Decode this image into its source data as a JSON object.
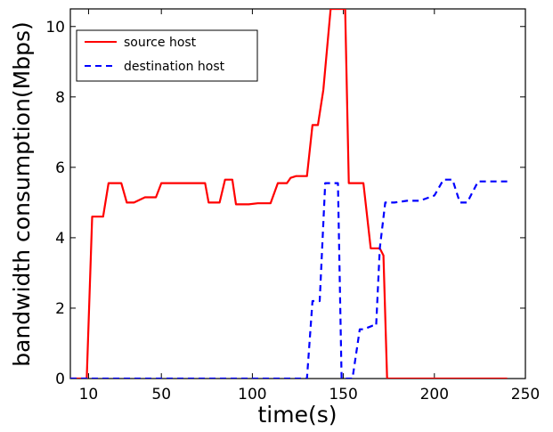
{
  "chart_data": {
    "type": "line",
    "xlabel": "time(s)",
    "ylabel": "bandwidth consumption(Mbps)",
    "xlim": [
      0,
      250
    ],
    "ylim": [
      0,
      10.5
    ],
    "x_ticks": [
      10,
      50,
      100,
      150,
      200,
      250
    ],
    "y_ticks": [
      0,
      2,
      4,
      6,
      8,
      10
    ],
    "grid": false,
    "legend_position": "top-left",
    "series": [
      {
        "name": "source host",
        "color": "#ff0000",
        "style": "solid",
        "x": [
          0,
          9,
          12,
          18,
          21,
          28,
          31,
          35,
          41,
          47,
          50,
          55,
          60,
          65,
          70,
          74,
          76,
          82,
          85,
          89,
          91,
          98,
          103,
          110,
          114,
          117,
          119,
          121,
          124,
          130,
          133,
          136,
          139,
          143,
          145,
          147,
          151,
          153,
          157,
          161,
          165,
          167,
          170,
          172,
          174,
          178,
          185,
          200,
          220,
          240
        ],
        "y": [
          0,
          0,
          4.6,
          4.6,
          5.55,
          5.55,
          5.0,
          5.0,
          5.15,
          5.15,
          5.55,
          5.55,
          5.55,
          5.55,
          5.55,
          5.55,
          5.0,
          5.0,
          5.65,
          5.65,
          4.95,
          4.95,
          4.98,
          4.98,
          5.55,
          5.55,
          5.55,
          5.7,
          5.75,
          5.75,
          7.2,
          7.2,
          8.2,
          10.5,
          10.5,
          10.5,
          10.5,
          5.55,
          5.55,
          5.55,
          3.7,
          3.7,
          3.7,
          3.5,
          0,
          0,
          0,
          0,
          0,
          0
        ]
      },
      {
        "name": "destination host",
        "color": "#0000ff",
        "style": "dashed",
        "x": [
          0,
          50,
          100,
          130,
          133,
          137,
          140,
          143,
          147,
          149,
          152,
          155,
          159,
          161,
          166,
          168,
          170,
          173,
          178,
          185,
          192,
          200,
          205,
          210,
          214,
          218,
          224,
          230,
          240
        ],
        "y": [
          0,
          0,
          0,
          0,
          2.2,
          2.2,
          5.55,
          5.55,
          5.55,
          0,
          0,
          0,
          1.4,
          1.4,
          1.5,
          1.5,
          3.7,
          5.0,
          5.0,
          5.05,
          5.05,
          5.2,
          5.65,
          5.65,
          5.0,
          5.0,
          5.6,
          5.6,
          5.6
        ]
      }
    ]
  }
}
